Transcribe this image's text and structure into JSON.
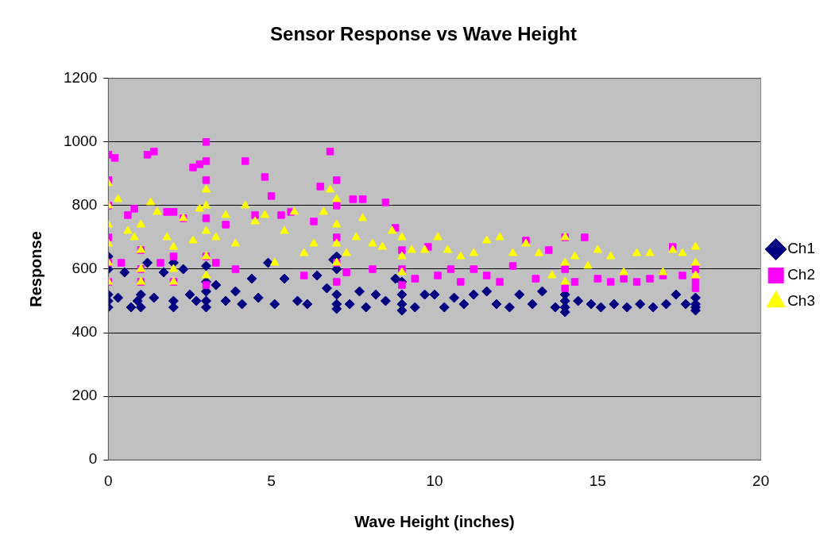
{
  "chart_data": {
    "type": "scatter",
    "title": "Sensor Response vs Wave Height",
    "xlabel": "Wave Height (inches)",
    "ylabel": "Response",
    "xlim": [
      0,
      20
    ],
    "xticks": [
      0,
      5,
      10,
      15,
      20
    ],
    "ylim": [
      0,
      1200
    ],
    "yticks": [
      0,
      200,
      400,
      600,
      800,
      1000,
      1200
    ],
    "grid": "y",
    "legend": "right",
    "series": [
      {
        "name": "Ch1",
        "color": "#000080",
        "marker": "diamond",
        "x": [
          0,
          0,
          0,
          0,
          0,
          0.3,
          0.5,
          0.7,
          0.9,
          1,
          1,
          1.2,
          1.4,
          1.7,
          2,
          2,
          2,
          2.3,
          2.5,
          2.7,
          3,
          3,
          3,
          3,
          3,
          3.3,
          3.6,
          3.9,
          4.1,
          4.4,
          4.6,
          4.9,
          5.1,
          5.4,
          5.8,
          6.1,
          6.4,
          6.7,
          6.9,
          7,
          7,
          7,
          7,
          7,
          7.4,
          7.7,
          7.9,
          8.2,
          8.5,
          8.8,
          9,
          9,
          9,
          9,
          9.4,
          9.7,
          10,
          10.3,
          10.6,
          10.9,
          11.2,
          11.6,
          11.9,
          12.3,
          12.6,
          13,
          13.3,
          13.7,
          14,
          14,
          14,
          14,
          14.4,
          14.8,
          15.1,
          15.5,
          15.9,
          16.3,
          16.7,
          17.1,
          17.4,
          17.7,
          18,
          18,
          18,
          18
        ],
        "values": [
          480,
          500,
          520,
          600,
          640,
          510,
          590,
          480,
          500,
          480,
          520,
          620,
          510,
          590,
          480,
          500,
          620,
          600,
          520,
          500,
          480,
          500,
          530,
          560,
          610,
          550,
          500,
          530,
          490,
          570,
          510,
          620,
          490,
          570,
          500,
          490,
          580,
          540,
          630,
          475,
          490,
          520,
          600,
          640,
          490,
          530,
          480,
          520,
          500,
          570,
          470,
          490,
          520,
          560,
          480,
          520,
          520,
          480,
          510,
          490,
          520,
          530,
          490,
          480,
          520,
          490,
          530,
          480,
          465,
          480,
          500,
          520,
          500,
          490,
          480,
          490,
          480,
          490,
          480,
          490,
          520,
          490,
          470,
          480,
          490,
          510
        ]
      },
      {
        "name": "Ch2",
        "color": "#ff00ff",
        "marker": "square",
        "x": [
          0,
          0,
          0,
          0,
          0,
          0,
          0.2,
          0.4,
          0.6,
          0.8,
          1,
          1,
          1,
          1.2,
          1.4,
          1.6,
          1.8,
          2,
          2,
          2,
          2.3,
          2.6,
          2.8,
          3,
          3,
          3,
          3,
          3,
          3,
          3.3,
          3.6,
          3.9,
          4.2,
          4.5,
          4.8,
          5,
          5.3,
          5.6,
          6,
          6.3,
          6.5,
          6.8,
          7,
          7,
          7,
          7,
          7,
          7.3,
          7.5,
          7.8,
          8.1,
          8.5,
          8.8,
          9,
          9,
          9,
          9.4,
          9.8,
          10.1,
          10.5,
          10.8,
          11.2,
          11.6,
          12,
          12.4,
          12.8,
          13.1,
          13.5,
          14,
          14,
          14,
          14.3,
          14.6,
          15,
          15.4,
          15.8,
          16.2,
          16.6,
          17,
          17.3,
          17.6,
          18,
          18,
          18
        ],
        "values": [
          560,
          620,
          700,
          800,
          880,
          960,
          950,
          620,
          770,
          790,
          560,
          600,
          660,
          960,
          970,
          620,
          780,
          560,
          640,
          780,
          760,
          920,
          930,
          550,
          640,
          760,
          880,
          940,
          1000,
          620,
          740,
          600,
          940,
          770,
          890,
          830,
          770,
          780,
          580,
          750,
          860,
          970,
          560,
          620,
          700,
          800,
          880,
          590,
          820,
          820,
          600,
          810,
          730,
          550,
          600,
          660,
          570,
          670,
          580,
          600,
          560,
          600,
          580,
          560,
          610,
          690,
          570,
          660,
          540,
          600,
          700,
          560,
          700,
          570,
          560,
          570,
          560,
          570,
          580,
          670,
          580,
          540,
          560,
          600
        ]
      },
      {
        "name": "Ch3",
        "color": "#ffff00",
        "marker": "triangle",
        "x": [
          0,
          0,
          0,
          0,
          0,
          0,
          0.3,
          0.6,
          0.8,
          1,
          1,
          1,
          1,
          1.3,
          1.5,
          1.8,
          2,
          2,
          2,
          2.3,
          2.6,
          2.8,
          3,
          3,
          3,
          3,
          3,
          3.3,
          3.6,
          3.9,
          4.2,
          4.5,
          4.8,
          5.1,
          5.4,
          5.7,
          6,
          6.3,
          6.6,
          6.8,
          7,
          7,
          7,
          7,
          7.3,
          7.6,
          7.8,
          8.1,
          8.4,
          8.7,
          9,
          9,
          9,
          9.3,
          9.7,
          10.1,
          10.4,
          10.8,
          11.2,
          11.6,
          12,
          12.4,
          12.8,
          13.2,
          13.6,
          14,
          14,
          14,
          14.3,
          14.7,
          15,
          15.4,
          15.8,
          16.2,
          16.6,
          17,
          17.3,
          17.6,
          18,
          18,
          18
        ],
        "values": [
          560,
          620,
          680,
          740,
          800,
          870,
          820,
          720,
          700,
          560,
          600,
          660,
          740,
          810,
          780,
          700,
          560,
          600,
          670,
          760,
          690,
          790,
          580,
          640,
          720,
          800,
          850,
          700,
          770,
          680,
          800,
          750,
          770,
          620,
          720,
          780,
          650,
          680,
          780,
          850,
          620,
          680,
          740,
          820,
          650,
          700,
          760,
          680,
          670,
          720,
          590,
          640,
          700,
          660,
          660,
          700,
          660,
          640,
          650,
          690,
          700,
          650,
          680,
          650,
          580,
          560,
          620,
          700,
          640,
          610,
          660,
          640,
          590,
          650,
          650,
          590,
          660,
          650,
          580,
          620,
          670
        ]
      }
    ]
  }
}
